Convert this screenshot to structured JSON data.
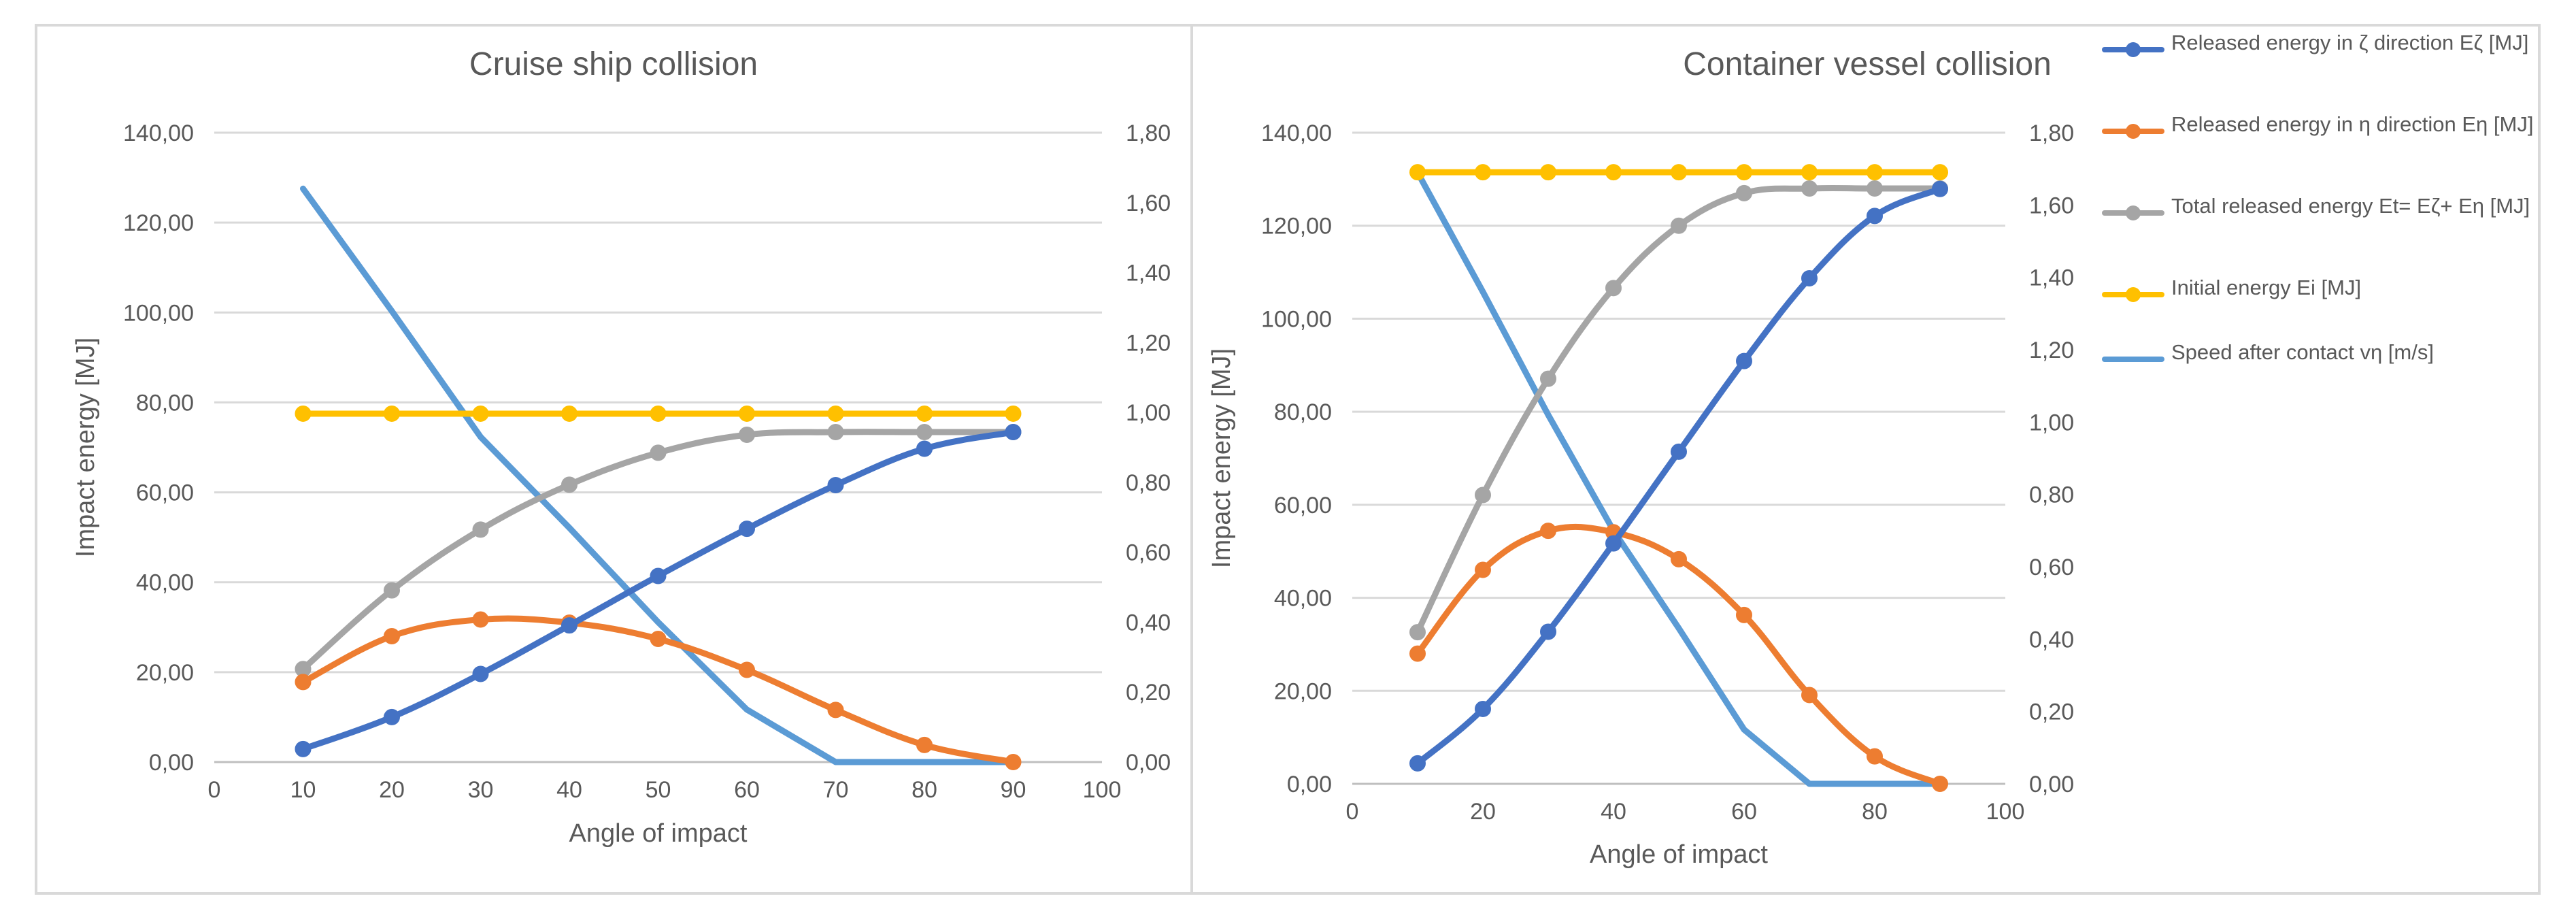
{
  "chart_data": [
    {
      "type": "line",
      "title": "Cruise ship collision",
      "xlabel": "Angle of impact",
      "ylabel": "Impact energy [MJ]",
      "y2label": "",
      "x": [
        10,
        20,
        30,
        40,
        50,
        60,
        70,
        80,
        90
      ],
      "xlim": [
        0,
        100
      ],
      "xticks": [
        "0",
        "10",
        "20",
        "30",
        "40",
        "50",
        "60",
        "70",
        "80",
        "90",
        "100"
      ],
      "ylim": [
        0,
        140
      ],
      "yticks": [
        "0,00",
        "20,00",
        "40,00",
        "60,00",
        "80,00",
        "100,00",
        "120,00",
        "140,00"
      ],
      "y2lim": [
        0,
        1.8
      ],
      "y2ticks": [
        "0,00",
        "0,20",
        "0,40",
        "0,60",
        "0,80",
        "1,00",
        "1,20",
        "1,40",
        "1,60",
        "1,80"
      ],
      "grid": true,
      "series": [
        {
          "name": "Released energy in ζ direction Eζ [MJ]",
          "axis": "left",
          "markers": true,
          "color": "#4472C4",
          "values": [
            2.9,
            10.0,
            19.6,
            30.4,
            41.4,
            51.9,
            61.6,
            69.7,
            73.4
          ]
        },
        {
          "name": "Released energy in η direction Eη [MJ]",
          "axis": "left",
          "markers": true,
          "color": "#ED7D31",
          "values": [
            17.8,
            28.0,
            31.7,
            31.0,
            27.4,
            20.5,
            11.6,
            3.8,
            0.0
          ]
        },
        {
          "name": "Total released energy Et= Eζ+ Eη [MJ]",
          "axis": "left",
          "markers": true,
          "color": "#A5A5A5",
          "values": [
            20.7,
            38.2,
            51.7,
            61.7,
            68.8,
            72.8,
            73.4,
            73.4,
            73.4
          ]
        },
        {
          "name": "Initial energy Ei [MJ]",
          "axis": "left",
          "markers": true,
          "color": "#FFC000",
          "values": [
            77.5,
            77.5,
            77.5,
            77.5,
            77.5,
            77.5,
            77.5,
            77.5,
            77.5
          ]
        },
        {
          "name": "Speed after contact vη [m/s]",
          "axis": "right",
          "markers": false,
          "color": "#5B9BD5",
          "values": [
            1.64,
            1.29,
            0.93,
            0.67,
            0.4,
            0.15,
            0.0,
            0.0,
            0.0
          ]
        }
      ]
    },
    {
      "type": "line",
      "title": "Container vessel collision",
      "xlabel": "Angle of impact",
      "ylabel": "Impact energy [MJ]",
      "y2label": "",
      "x": [
        10,
        20,
        30,
        40,
        50,
        60,
        70,
        80,
        90
      ],
      "xlim": [
        0,
        100
      ],
      "xticks": [
        "0",
        "20",
        "40",
        "60",
        "80",
        "100"
      ],
      "ylim": [
        0,
        140
      ],
      "yticks": [
        "0,00",
        "20,00",
        "40,00",
        "60,00",
        "80,00",
        "100,00",
        "120,00",
        "140,00"
      ],
      "y2lim": [
        0,
        1.8
      ],
      "y2ticks": [
        "0,00",
        "0,20",
        "0,40",
        "0,60",
        "0,80",
        "1,00",
        "1,20",
        "1,40",
        "1,60",
        "1,80"
      ],
      "grid": true,
      "series": [
        {
          "name": "Released energy in ζ direction Eζ [MJ]",
          "axis": "left",
          "markers": true,
          "color": "#4472C4",
          "values": [
            4.4,
            16.1,
            32.7,
            51.7,
            71.4,
            90.9,
            108.7,
            122.1,
            127.9
          ]
        },
        {
          "name": "Released energy in η direction Eη [MJ]",
          "axis": "left",
          "markers": true,
          "color": "#ED7D31",
          "values": [
            28.0,
            46.0,
            54.4,
            54.1,
            48.3,
            36.3,
            19.1,
            5.9,
            0.0
          ]
        },
        {
          "name": "Total released energy Et= Eζ+ Eη [MJ]",
          "axis": "left",
          "markers": true,
          "color": "#A5A5A5",
          "values": [
            32.6,
            62.1,
            87.1,
            106.6,
            120.0,
            127.0,
            128.0,
            128.0,
            128.0
          ]
        },
        {
          "name": "Initial energy Ei [MJ]",
          "axis": "left",
          "markers": true,
          "color": "#FFC000",
          "values": [
            131.5,
            131.5,
            131.5,
            131.5,
            131.5,
            131.5,
            131.5,
            131.5,
            131.5
          ]
        },
        {
          "name": "Speed after contact vη [m/s]",
          "axis": "right",
          "markers": false,
          "color": "#5B9BD5",
          "values": [
            1.69,
            1.36,
            1.02,
            0.7,
            0.43,
            0.15,
            0.0,
            0.0,
            0.0
          ]
        }
      ]
    }
  ],
  "legend": {
    "position": "right",
    "items": [
      {
        "label": "Released energy in ζ direction Eζ [MJ]",
        "color": "#4472C4",
        "marker": true
      },
      {
        "label": "Released energy in η direction Eη [MJ]",
        "color": "#ED7D31",
        "marker": true
      },
      {
        "label": "Total released energy Et= Eζ+ Eη [MJ]",
        "color": "#A5A5A5",
        "marker": true
      },
      {
        "label": "Initial energy Ei [MJ]",
        "color": "#FFC000",
        "marker": true
      },
      {
        "label": "Speed after contact vη [m/s]",
        "color": "#5B9BD5",
        "marker": false
      }
    ]
  }
}
